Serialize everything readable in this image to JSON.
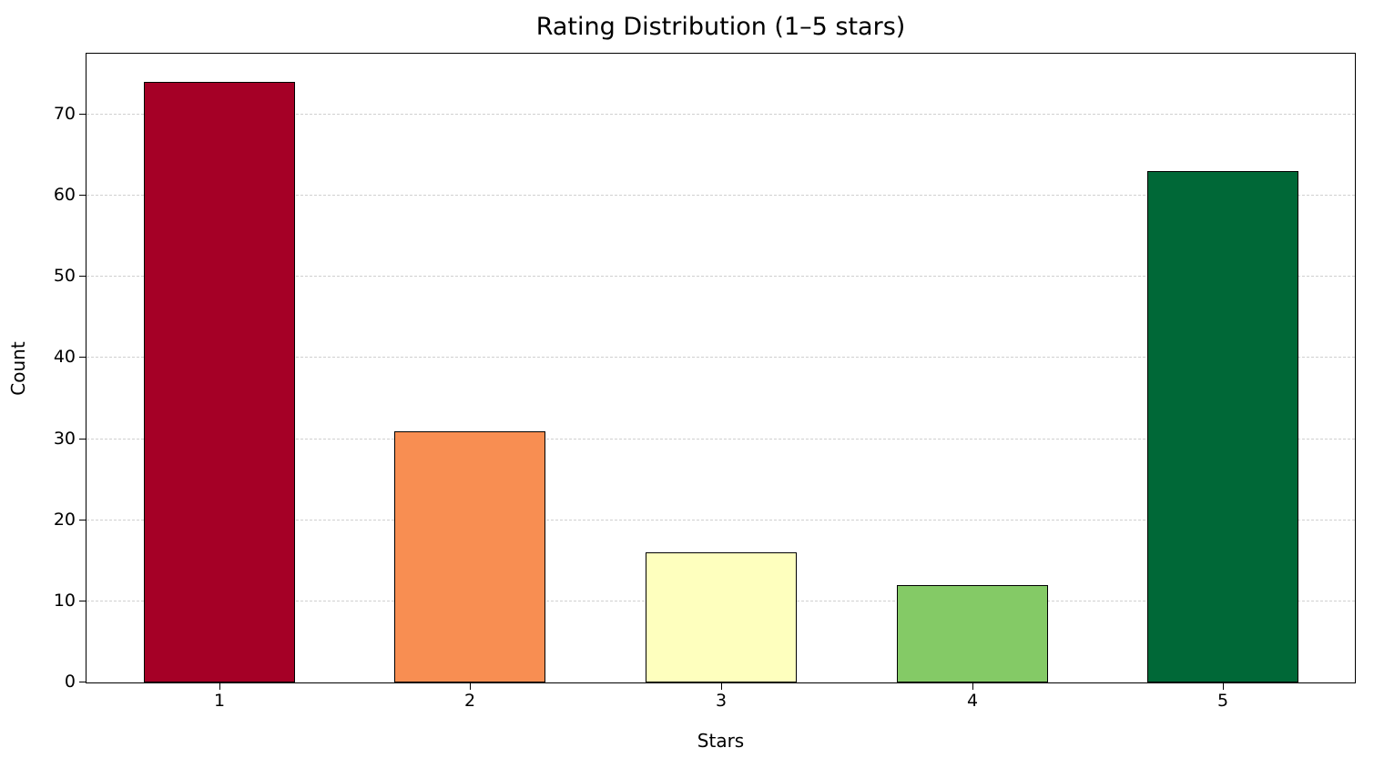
{
  "chart_data": {
    "type": "bar",
    "title": "Rating Distribution (1–5 stars)",
    "xlabel": "Stars",
    "ylabel": "Count",
    "categories": [
      "1",
      "2",
      "3",
      "4",
      "5"
    ],
    "values": [
      74,
      31,
      16,
      12,
      63
    ],
    "colors": [
      "#a50026",
      "#f88e52",
      "#feffbe",
      "#84ca66",
      "#006837"
    ],
    "yticks": [
      0,
      10,
      20,
      30,
      40,
      50,
      60,
      70
    ],
    "ylim": [
      0,
      77.7
    ],
    "grid": {
      "axis": "y",
      "style": "dashed"
    },
    "legend": null
  }
}
